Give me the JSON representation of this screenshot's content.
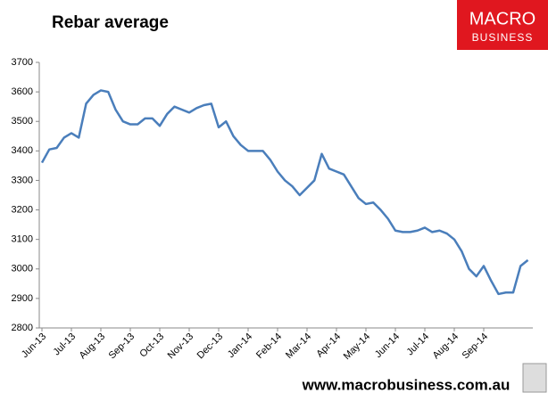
{
  "chart_data": {
    "type": "line",
    "title": "Rebar average",
    "logo_lines": [
      "MACRO",
      "BUSINESS"
    ],
    "footer": "www.macrobusiness.com.au",
    "categories": [
      "Jun-13",
      null,
      null,
      null,
      "Jul-13",
      null,
      null,
      null,
      "Aug-13",
      null,
      null,
      null,
      "Sep-13",
      null,
      null,
      null,
      "Oct-13",
      null,
      null,
      null,
      "Nov-13",
      null,
      null,
      null,
      "Dec-13",
      null,
      null,
      null,
      "Jan-14",
      null,
      null,
      null,
      "Feb-14",
      null,
      null,
      null,
      "Mar-14",
      null,
      null,
      null,
      "Apr-14",
      null,
      null,
      null,
      "May-14",
      null,
      null,
      null,
      "Jun-14",
      null,
      null,
      null,
      "Jul-14",
      null,
      null,
      null,
      "Aug-14",
      null,
      null,
      null,
      "Sep-14",
      null,
      null,
      null,
      null,
      null,
      null
    ],
    "values": [
      3360,
      3405,
      3410,
      3445,
      3460,
      3445,
      3560,
      3590,
      3605,
      3600,
      3540,
      3500,
      3490,
      3490,
      3510,
      3510,
      3485,
      3525,
      3550,
      3540,
      3530,
      3545,
      3555,
      3560,
      3480,
      3500,
      3450,
      3420,
      3400,
      3400,
      3400,
      3370,
      3330,
      3300,
      3280,
      3250,
      3275,
      3300,
      3390,
      3340,
      3330,
      3320,
      3280,
      3240,
      3220,
      3225,
      3200,
      3170,
      3130,
      3125,
      3125,
      3130,
      3140,
      3125,
      3130,
      3120,
      3100,
      3060,
      3000,
      2975,
      3010,
      2960,
      2915,
      2920,
      2920,
      3010,
      3030
    ],
    "color": "#4a7ebb",
    "ylim": [
      2800,
      3700
    ],
    "yticks": [
      2800,
      2900,
      3000,
      3100,
      3200,
      3300,
      3400,
      3500,
      3600,
      3700
    ],
    "grid": false
  }
}
